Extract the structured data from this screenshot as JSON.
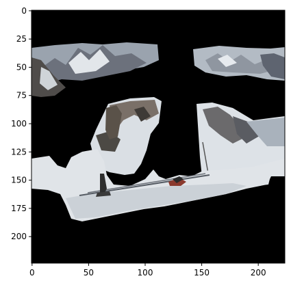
{
  "chart_data": {
    "type": "image",
    "title": "",
    "xlabel": "",
    "ylabel": "",
    "xlim": [
      -0.5,
      223.5
    ],
    "ylim": [
      223.5,
      -0.5
    ],
    "x_ticks": [
      0,
      50,
      100,
      150,
      200
    ],
    "y_ticks": [
      0,
      25,
      50,
      75,
      100,
      125,
      150,
      175,
      200
    ],
    "grid": false,
    "legend": "none",
    "image_description": "Masked photo of a skier on a snowy mountain slope with a black background; visible regions include distant snowy mountain peaks under an overcast sky, a rocky hillside, a ski pole, and the skier's skis in the snow.",
    "colors": {
      "background": "#000000",
      "snow": "#dfe4e8",
      "snow_shadow": "#c5ccd3",
      "sky": "#a7b0bb",
      "mountain_dark": "#4d4f58",
      "mountain_light": "#8c929c",
      "rock": "#6e665e",
      "skier": "#4a4640",
      "pants": "#2a2a2a",
      "boot": "#8b3a2e"
    }
  }
}
